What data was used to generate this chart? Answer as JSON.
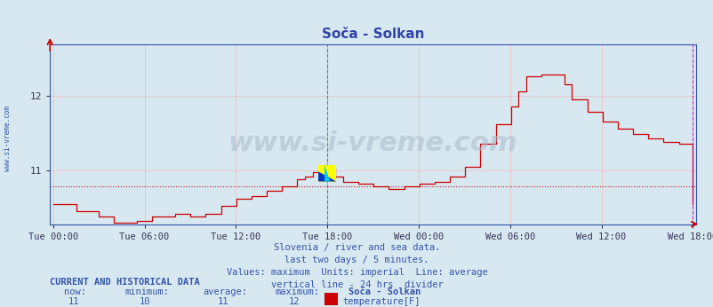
{
  "title": "Soča - Solkan",
  "bg_color": "#d8e8f0",
  "plot_bg_color": "#d8e8f0",
  "line_color": "#cc0000",
  "avg_line_color": "#cc0000",
  "avg_line_value": 10.78,
  "vline_color": "#555555",
  "right_vline_color": "#cc00cc",
  "grid_color": "#ff9999",
  "ytick_labels": [
    "11",
    "12"
  ],
  "ytick_values": [
    11.0,
    12.0
  ],
  "ylim": [
    10.28,
    12.68
  ],
  "xlabel_ticks": [
    "Tue 00:00",
    "Tue 06:00",
    "Tue 12:00",
    "Tue 18:00",
    "Wed 00:00",
    "Wed 06:00",
    "Wed 12:00",
    "Wed 18:00"
  ],
  "watermark": "www.si-vreme.com",
  "subtitle_lines": [
    "Slovenia / river and sea data.",
    "last two days / 5 minutes.",
    "Values: maximum  Units: imperial  Line: average",
    "vertical line - 24 hrs  divider"
  ],
  "footer_bold": "CURRENT AND HISTORICAL DATA",
  "legend_label": "temperature[F]",
  "side_label": "www.si-vreme.com",
  "now": 11,
  "min_val": 10,
  "avg_val": 11,
  "max_val": 12
}
